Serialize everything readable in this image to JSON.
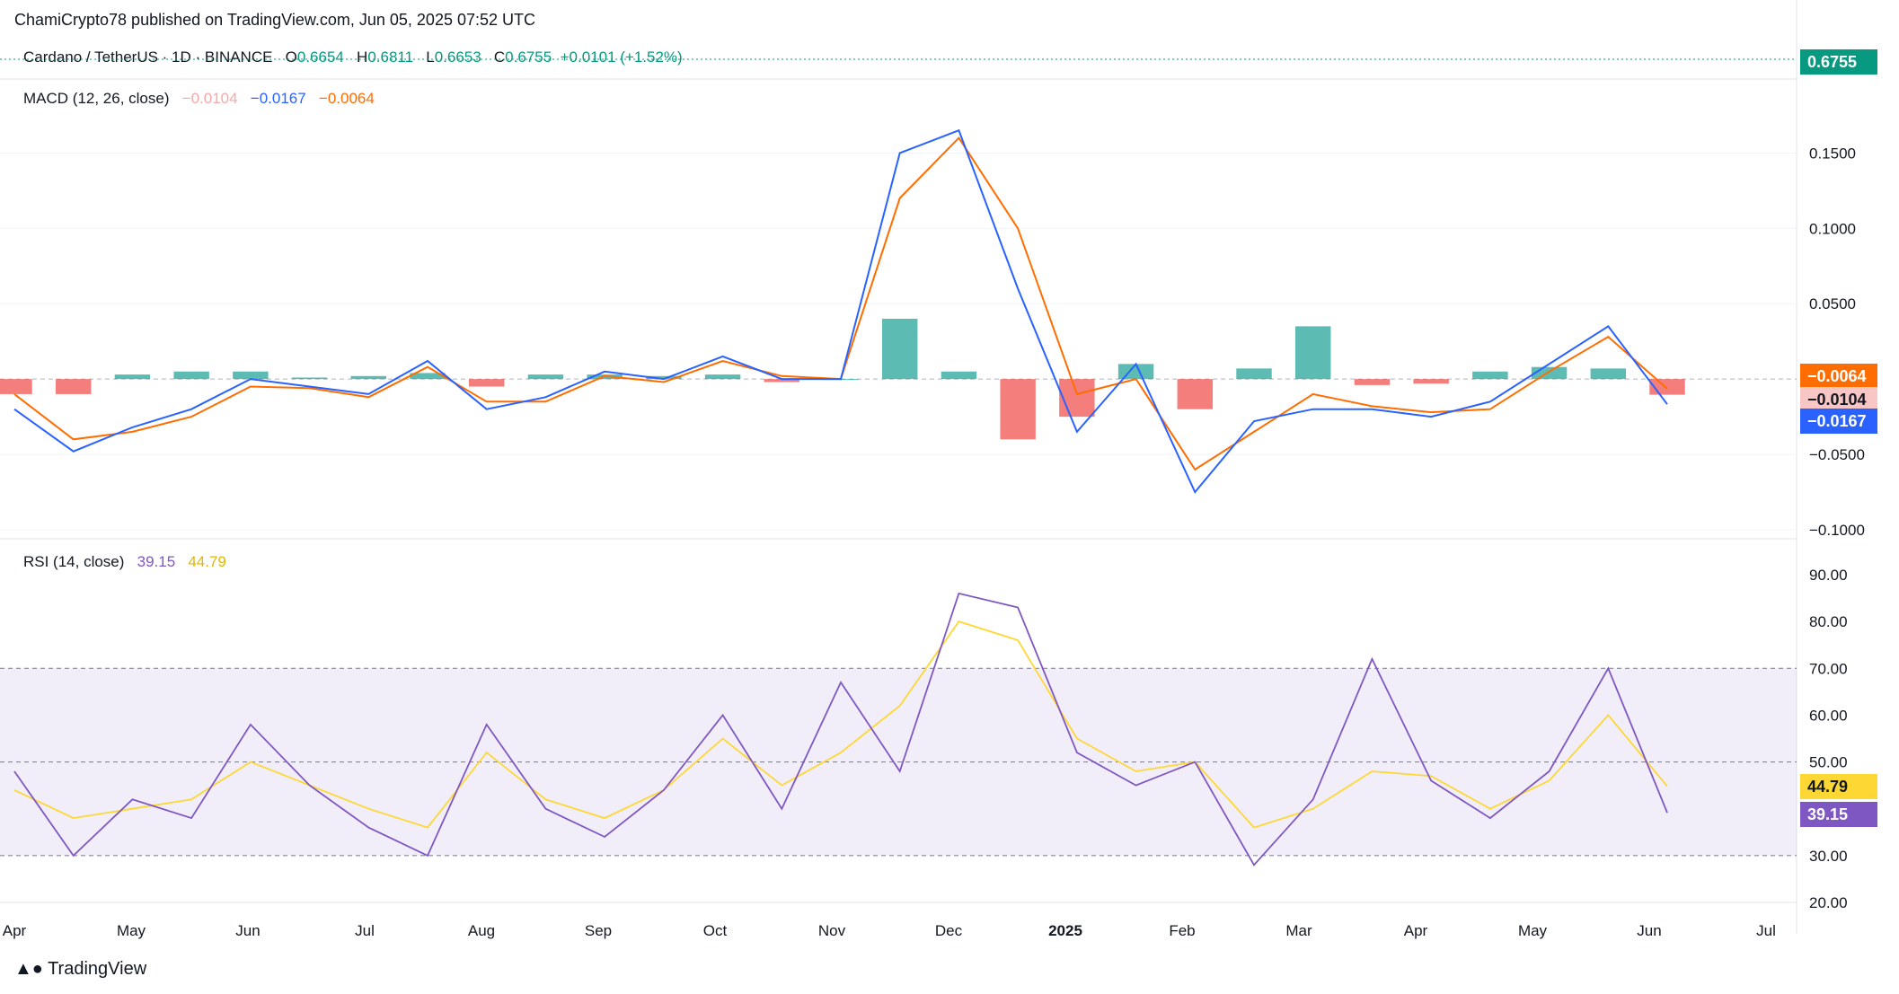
{
  "publisher": "ChamiCrypto78 published on TradingView.com, Jun 05, 2025 07:52 UTC",
  "symbol": {
    "name": "Cardano / TetherUS · 1D · BINANCE",
    "open_label": "O",
    "open": "0.6654",
    "high_label": "H",
    "high": "0.6811",
    "low_label": "L",
    "low": "0.6653",
    "close_label": "C",
    "close": "0.6755",
    "change": "+0.0101 (+1.52%)",
    "last_price": "0.6755",
    "price_color": "#089981"
  },
  "macd": {
    "label": "MACD (12, 26, close)",
    "histogram": "−0.0104",
    "macd": "−0.0167",
    "signal": "−0.0064",
    "histogram_color": "#F7A9A7",
    "macd_color": "#2962FF",
    "signal_color": "#FF6D00",
    "y_ticks": [
      "0.1500",
      "0.1000",
      "0.0500",
      "−0.0500",
      "−0.1000"
    ]
  },
  "rsi": {
    "label": "RSI (14, close)",
    "value": "39.15",
    "ma": "44.79",
    "rsi_color": "#7E57C2",
    "ma_color": "#FDD835",
    "y_ticks": [
      "90.00",
      "80.00",
      "70.00",
      "60.00",
      "50.00",
      "30.00",
      "20.00"
    ]
  },
  "x_ticks": [
    "Apr",
    "May",
    "Jun",
    "Jul",
    "Aug",
    "Sep",
    "Oct",
    "Nov",
    "Dec",
    "2025",
    "Feb",
    "Mar",
    "Apr",
    "May",
    "Jun",
    "Jul"
  ],
  "footer": "TradingView",
  "chart_data": [
    {
      "type": "line",
      "title": "MACD (12, 26, close)",
      "x": [
        "Apr",
        "mid-Apr",
        "May",
        "mid-May",
        "Jun",
        "mid-Jun",
        "Jul",
        "mid-Jul",
        "Aug",
        "mid-Aug",
        "Sep",
        "mid-Sep",
        "Oct",
        "mid-Oct",
        "Nov",
        "mid-Nov",
        "Dec",
        "mid-Dec",
        "2025",
        "mid-Jan",
        "Feb",
        "mid-Feb",
        "Mar",
        "mid-Mar",
        "Apr",
        "mid-Apr",
        "May",
        "mid-May",
        "Jun"
      ],
      "series": [
        {
          "name": "MACD",
          "values": [
            -0.02,
            -0.048,
            -0.032,
            -0.02,
            0.0,
            -0.005,
            -0.01,
            0.012,
            -0.02,
            -0.012,
            0.005,
            0.0,
            0.015,
            0.0,
            0.0,
            0.15,
            0.165,
            0.06,
            -0.035,
            0.01,
            -0.075,
            -0.028,
            -0.02,
            -0.02,
            -0.025,
            -0.015,
            0.01,
            0.035,
            -0.0167
          ]
        },
        {
          "name": "Signal",
          "values": [
            -0.01,
            -0.04,
            -0.035,
            -0.025,
            -0.005,
            -0.006,
            -0.012,
            0.008,
            -0.015,
            -0.015,
            0.002,
            -0.002,
            0.012,
            0.002,
            0.0,
            0.12,
            0.16,
            0.1,
            -0.01,
            0.0,
            -0.06,
            -0.035,
            -0.01,
            -0.018,
            -0.022,
            -0.02,
            0.005,
            0.028,
            -0.0064
          ]
        },
        {
          "name": "Histogram",
          "values": [
            -0.01,
            -0.01,
            0.003,
            0.005,
            0.005,
            0.001,
            0.002,
            0.004,
            -0.005,
            0.003,
            0.003,
            0.002,
            0.003,
            -0.002,
            0.0,
            0.04,
            0.005,
            -0.04,
            -0.025,
            0.01,
            -0.02,
            0.007,
            0.035,
            -0.004,
            -0.003,
            0.005,
            0.008,
            0.007,
            -0.0104
          ]
        }
      ],
      "ylim": [
        -0.1,
        0.18
      ]
    },
    {
      "type": "line",
      "title": "RSI (14, close)",
      "x": [
        "Apr",
        "mid-Apr",
        "May",
        "mid-May",
        "Jun",
        "mid-Jun",
        "Jul",
        "mid-Jul",
        "Aug",
        "mid-Aug",
        "Sep",
        "mid-Sep",
        "Oct",
        "mid-Oct",
        "Nov",
        "mid-Nov",
        "Dec",
        "mid-Dec",
        "2025",
        "mid-Jan",
        "Feb",
        "mid-Feb",
        "Mar",
        "mid-Mar",
        "Apr",
        "mid-Apr",
        "May",
        "mid-May",
        "Jun"
      ],
      "series": [
        {
          "name": "RSI",
          "values": [
            48,
            30,
            42,
            38,
            58,
            45,
            36,
            30,
            58,
            40,
            34,
            44,
            60,
            40,
            67,
            48,
            86,
            83,
            52,
            45,
            50,
            28,
            42,
            72,
            46,
            38,
            48,
            70,
            39.15
          ]
        },
        {
          "name": "RSI-based MA",
          "values": [
            44,
            38,
            40,
            42,
            50,
            45,
            40,
            36,
            52,
            42,
            38,
            44,
            55,
            45,
            52,
            62,
            80,
            76,
            55,
            48,
            50,
            36,
            40,
            48,
            47,
            40,
            46,
            60,
            44.79
          ]
        }
      ],
      "ylim": [
        20,
        90
      ],
      "bands": [
        30,
        50,
        70
      ]
    }
  ]
}
